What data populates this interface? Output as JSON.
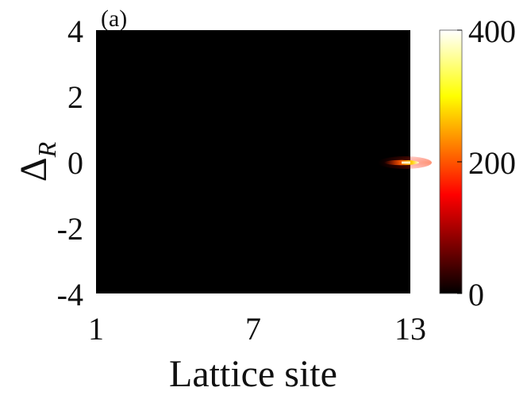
{
  "panel_label": "(a)",
  "chart_data": {
    "type": "heatmap",
    "title": "",
    "xlabel": "Lattice site",
    "ylabel_main": "Δ",
    "ylabel_sub": "R",
    "xlim": [
      1,
      13
    ],
    "ylim": [
      -4,
      4
    ],
    "x_ticks": [
      "1",
      "7",
      "13"
    ],
    "y_ticks": [
      "4",
      "2",
      "0",
      "-2",
      "-4"
    ],
    "colorbar": {
      "range": [
        0,
        400
      ],
      "ticks": [
        "400",
        "200",
        "0"
      ],
      "colormap": "hot"
    },
    "background_value": 0,
    "hotspot": {
      "x_range": [
        12.1,
        13
      ],
      "y_center": 0,
      "y_halfwidth": 0.07,
      "max_value": 400
    }
  }
}
